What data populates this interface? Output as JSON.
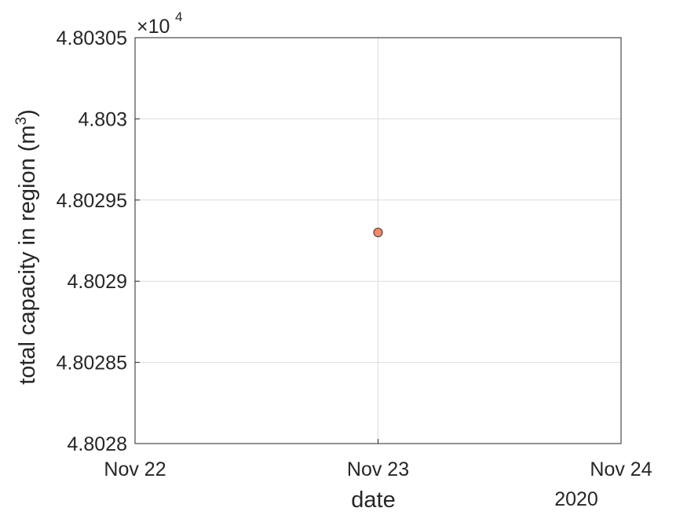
{
  "chart_data": {
    "type": "scatter",
    "xlabel": "date",
    "ylabel": "total capacity in region (m",
    "ylabel_sup": "3",
    "ylabel_end": ")",
    "x_ticks": [
      "Nov 22",
      "Nov 23",
      "Nov 24"
    ],
    "x_year_label": "2020",
    "xlim": [
      "2020-11-22",
      "2020-11-24"
    ],
    "y_multiplier": {
      "base": "×10",
      "exponent": "4"
    },
    "y_ticks": [
      4.8028,
      4.80285,
      4.8029,
      4.80295,
      4.803,
      4.80305
    ],
    "y_tick_labels": [
      "4.8028",
      "4.80285",
      "4.8029",
      "4.80295",
      "4.803",
      "4.80305"
    ],
    "ylim": [
      4.8028,
      4.80305
    ],
    "grid": true,
    "points": [
      {
        "x": "2020-11-23",
        "y": 4.80293
      }
    ],
    "marker_color": "#f4896b",
    "marker_edge": "#333333"
  }
}
